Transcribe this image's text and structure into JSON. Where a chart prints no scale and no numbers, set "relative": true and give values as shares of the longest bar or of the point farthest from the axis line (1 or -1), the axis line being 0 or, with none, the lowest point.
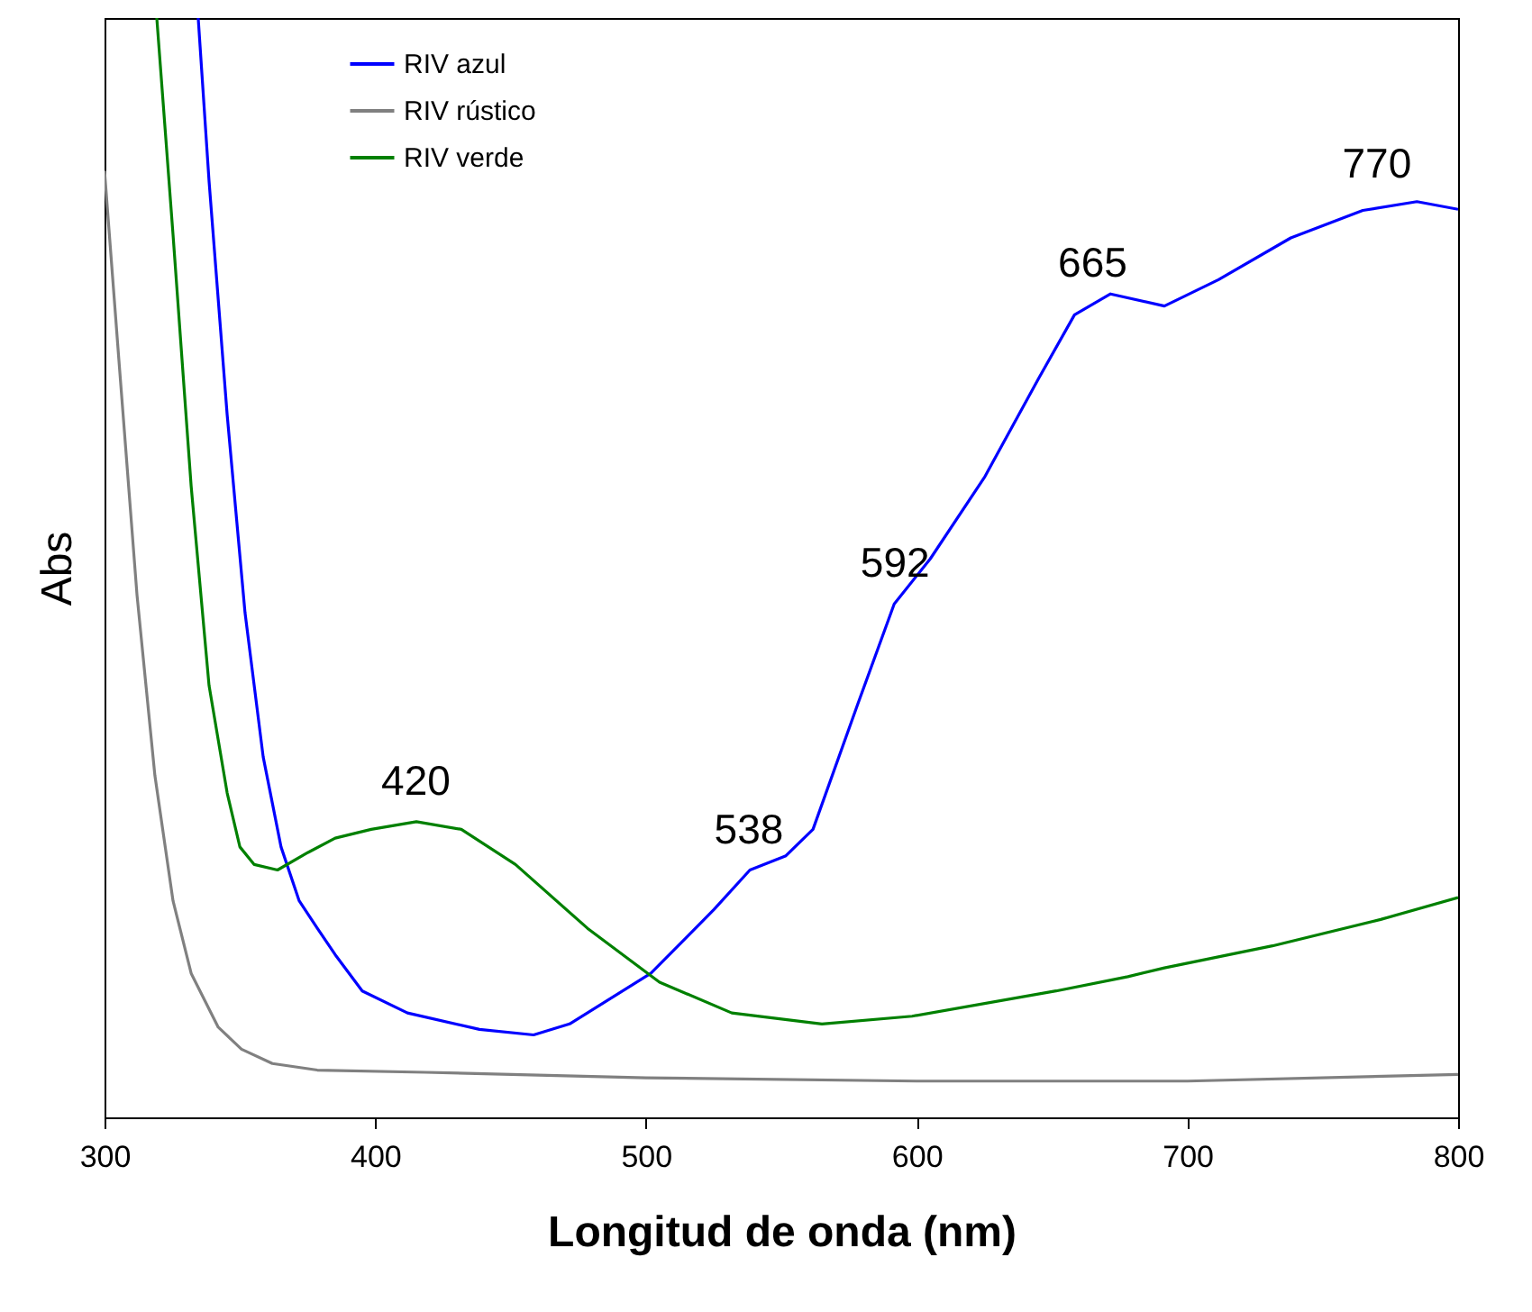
{
  "chart_data": {
    "type": "line",
    "xlabel": "Longitud de onda (nm)",
    "ylabel": "Abs",
    "relative": true,
    "xlim": [
      300,
      800
    ],
    "xticks": [
      300,
      400,
      500,
      600,
      700,
      800
    ],
    "grid": false,
    "legend": "top left",
    "line_style": "solid",
    "marker": "none",
    "series": [
      {
        "name": "RIV azul",
        "color": "#0000ff",
        "x": [
          334.6,
          338.6,
          345.3,
          351.9,
          358.6,
          365.2,
          371.9,
          378.6,
          385.2,
          395.2,
          411.9,
          438.5,
          458.5,
          471.8,
          501.8,
          525.1,
          538.4,
          551.7,
          561.7,
          578.4,
          591.7,
          605,
          625,
          645,
          658.3,
          671.6,
          691.5,
          711.5,
          738.2,
          764.8,
          784.8,
          800
        ],
        "values": [
          1,
          0.852,
          0.639,
          0.459,
          0.328,
          0.246,
          0.197,
          0.172,
          0.148,
          0.115,
          0.095,
          0.08,
          0.075,
          0.085,
          0.131,
          0.189,
          0.225,
          0.238,
          0.262,
          0.377,
          0.467,
          0.508,
          0.582,
          0.672,
          0.73,
          0.749,
          0.738,
          0.762,
          0.8,
          0.825,
          0.833,
          0.826
        ]
      },
      {
        "name": "RIV rústico",
        "color": "#808080",
        "x": [
          300,
          305.3,
          312,
          318.6,
          325.3,
          332,
          342,
          350.6,
          362,
          378.6,
          418.5,
          500,
          600,
          700,
          800
        ],
        "values": [
          0.861,
          0.689,
          0.475,
          0.311,
          0.197,
          0.131,
          0.082,
          0.062,
          0.049,
          0.043,
          0.041,
          0.036,
          0.033,
          0.033,
          0.039
        ]
      },
      {
        "name": "RIV verde",
        "color": "#008000",
        "x": [
          319.3,
          325.3,
          332,
          338.6,
          345.3,
          350,
          355.3,
          363.9,
          375.2,
          385.2,
          398.5,
          415.2,
          431.8,
          451.8,
          478.4,
          505,
          531.7,
          565,
          598.3,
          651.5,
          678,
          691.5,
          731.4,
          771.4,
          800
        ],
        "values": [
          1,
          0.803,
          0.574,
          0.393,
          0.295,
          0.246,
          0.23,
          0.225,
          0.241,
          0.254,
          0.262,
          0.269,
          0.262,
          0.23,
          0.172,
          0.123,
          0.095,
          0.085,
          0.092,
          0.115,
          0.128,
          0.136,
          0.156,
          0.18,
          0.2
        ]
      }
    ],
    "annotations": [
      {
        "text": "420",
        "x": 415,
        "y": 0.269
      },
      {
        "text": "538",
        "x": 538,
        "y": 0.225
      },
      {
        "text": "592",
        "x": 592,
        "y": 0.467
      },
      {
        "text": "665",
        "x": 665,
        "y": 0.74
      },
      {
        "text": "770",
        "x": 770,
        "y": 0.83
      }
    ]
  }
}
